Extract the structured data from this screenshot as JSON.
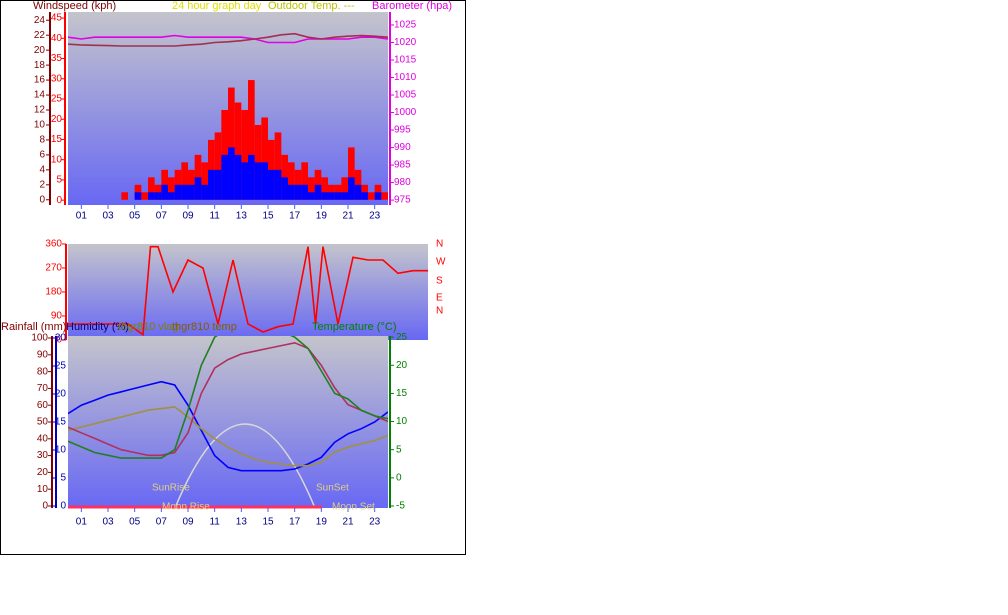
{
  "chart_data": [
    {
      "type": "bar",
      "labels": [
        {
          "text": "Windspeed (kph)",
          "color": "#800000"
        },
        {
          "text": "24 hour graph day",
          "color": "#e0e000"
        },
        {
          "text": "Outdoor Temp. ---",
          "color": "#c0c000"
        },
        {
          "text": "Barometer (hpa)",
          "color": "#e000e0"
        }
      ],
      "xlim": [
        0,
        24
      ],
      "xticks": [
        {
          "value": 1,
          "label": "01"
        },
        {
          "value": 3,
          "label": "03"
        },
        {
          "value": 5,
          "label": "05"
        },
        {
          "value": 7,
          "label": "07"
        },
        {
          "value": 9,
          "label": "09"
        },
        {
          "value": 11,
          "label": "11"
        },
        {
          "value": 13,
          "label": "13"
        },
        {
          "value": 15,
          "label": "15"
        },
        {
          "value": 17,
          "label": "17"
        },
        {
          "value": 19,
          "label": "19"
        },
        {
          "value": 21,
          "label": "21"
        },
        {
          "value": 23,
          "label": "23"
        }
      ],
      "ylim": [
        -0.7,
        25.1
      ],
      "yticks": [
        0,
        2,
        4,
        6,
        8,
        10,
        12,
        14,
        16,
        18,
        20,
        22,
        24
      ],
      "y3lim": [
        -1.2,
        46.5
      ],
      "y3ticks": [
        0,
        5,
        10,
        15,
        20,
        25,
        30,
        35,
        40,
        45
      ],
      "y2lim": [
        973.6,
        1028.7
      ],
      "y2ticks": [
        975,
        980,
        985,
        990,
        995,
        1000,
        1005,
        1010,
        1015,
        1020,
        1025
      ],
      "axis_colors": {
        "y": "#800000",
        "y3": "#ff0000",
        "y2": "#e000e0"
      },
      "series": [
        {
          "kind": "bar",
          "color": "#ff0000",
          "x": [
            0,
            0.5,
            1,
            1.5,
            2,
            2.5,
            3,
            3.5,
            4,
            4.5,
            5,
            5.5,
            6,
            6.5,
            7,
            7.5,
            8,
            8.5,
            9,
            9.5,
            10,
            10.5,
            11,
            11.5,
            12,
            12.5,
            13,
            13.5,
            14,
            14.5,
            15,
            15.5,
            16,
            16.5,
            17,
            17.5,
            18,
            18.5,
            19,
            19.5,
            20,
            20.5,
            21,
            21.5,
            22,
            22.5,
            23,
            23.5
          ],
          "values": [
            0,
            0,
            0,
            0,
            0,
            0,
            0,
            0,
            1,
            0,
            2,
            1,
            3,
            2,
            4,
            3,
            4,
            5,
            4,
            6,
            5,
            8,
            9,
            12,
            15,
            13,
            12,
            16,
            10,
            11,
            8,
            9,
            6,
            5,
            4,
            5,
            3,
            4,
            3,
            2,
            2,
            3,
            7,
            4,
            2,
            1,
            2,
            1
          ]
        },
        {
          "kind": "bar",
          "color": "#0000ff",
          "x": [
            0,
            0.5,
            1,
            1.5,
            2,
            2.5,
            3,
            3.5,
            4,
            4.5,
            5,
            5.5,
            6,
            6.5,
            7,
            7.5,
            8,
            8.5,
            9,
            9.5,
            10,
            10.5,
            11,
            11.5,
            12,
            12.5,
            13,
            13.5,
            14,
            14.5,
            15,
            15.5,
            16,
            16.5,
            17,
            17.5,
            18,
            18.5,
            19,
            19.5,
            20,
            20.5,
            21,
            21.5,
            22,
            22.5,
            23,
            23.5
          ],
          "values": [
            0,
            0,
            0,
            0,
            0,
            0,
            0,
            0,
            0,
            0,
            1,
            0,
            1,
            1,
            2,
            1,
            2,
            2,
            2,
            3,
            2,
            4,
            4,
            6,
            7,
            6,
            5,
            6,
            5,
            5,
            4,
            4,
            3,
            2,
            2,
            2,
            1,
            2,
            1,
            1,
            1,
            1,
            3,
            2,
            1,
            0,
            1,
            0
          ]
        },
        {
          "kind": "line",
          "axis": "y2",
          "color": "#e000e0",
          "x": [
            0,
            1,
            2,
            3,
            4,
            5,
            6,
            7,
            8,
            9,
            10,
            11,
            12,
            13,
            14,
            15,
            16,
            17,
            18,
            19,
            20,
            21,
            22,
            23,
            24
          ],
          "values": [
            1021.5,
            1021,
            1021.5,
            1021.5,
            1021.5,
            1021.5,
            1021.5,
            1021.5,
            1022,
            1021.5,
            1021.5,
            1021.5,
            1021.5,
            1021.5,
            1021,
            1020,
            1020,
            1020,
            1021,
            1021,
            1021,
            1021,
            1021.5,
            1021.5,
            1021
          ]
        },
        {
          "kind": "line",
          "axis": "y2",
          "color": "#a03050",
          "x": [
            0,
            1,
            2,
            3,
            4,
            5,
            6,
            7,
            8,
            9,
            10,
            11,
            12,
            13,
            14,
            15,
            16,
            17,
            18,
            19,
            20,
            21,
            22,
            23,
            24
          ],
          "values": [
            1019.5,
            1019.3,
            1019.2,
            1019.1,
            1019,
            1019,
            1019,
            1019,
            1019,
            1019.3,
            1019.5,
            1020,
            1020.2,
            1020.5,
            1021,
            1021.5,
            1022.2,
            1022.5,
            1021.5,
            1021,
            1021.5,
            1021.8,
            1022,
            1021.8,
            1021.5
          ]
        }
      ]
    },
    {
      "type": "line",
      "labels": [],
      "xlim": [
        0,
        24
      ],
      "xticks": [],
      "ylim": [
        0,
        360
      ],
      "yticks": [
        0,
        90,
        180,
        270,
        360
      ],
      "axis_colors": {
        "y": "#ff0000"
      },
      "compass": [
        "N",
        "W",
        "S",
        "E",
        "N"
      ],
      "compass_color": "#ff0000",
      "series": [
        {
          "kind": "line",
          "color": "#ff0000",
          "x": [
            0,
            1,
            2,
            3,
            4,
            5,
            5.5,
            6,
            7,
            8,
            9,
            10,
            11,
            12,
            13,
            14,
            15,
            16,
            16.5,
            17,
            18,
            19,
            20,
            21,
            22,
            23,
            24
          ],
          "values": [
            60,
            60,
            60,
            60,
            60,
            20,
            350,
            350,
            180,
            300,
            270,
            60,
            300,
            60,
            30,
            50,
            60,
            350,
            60,
            350,
            60,
            310,
            300,
            300,
            250,
            260,
            260
          ]
        }
      ]
    },
    {
      "type": "line",
      "labels": [
        {
          "text": "Rainfall (mm)",
          "color": "#800000"
        },
        {
          "text": "Humidity (%)",
          "color": "#000080"
        },
        {
          "text": "thgr810 vlag",
          "color": "#808000"
        },
        {
          "text": "thgr810 temp",
          "color": "#806000"
        },
        {
          "text": "Temperature (°C)",
          "color": "#008000"
        }
      ],
      "annotations": [
        "SunRise",
        "SunSet",
        "Moon Rise",
        "Moon Set"
      ],
      "xlim": [
        0,
        24
      ],
      "xticks": [
        {
          "value": 1,
          "label": "01"
        },
        {
          "value": 3,
          "label": "03"
        },
        {
          "value": 5,
          "label": "05"
        },
        {
          "value": 7,
          "label": "07"
        },
        {
          "value": 9,
          "label": "09"
        },
        {
          "value": 11,
          "label": "11"
        },
        {
          "value": 13,
          "label": "13"
        },
        {
          "value": 15,
          "label": "15"
        },
        {
          "value": 17,
          "label": "17"
        },
        {
          "value": 19,
          "label": "19"
        },
        {
          "value": 21,
          "label": "21"
        },
        {
          "value": 23,
          "label": "23"
        }
      ],
      "ylim": [
        -1.2,
        101.2
      ],
      "yticks": [
        0,
        10,
        20,
        30,
        40,
        50,
        60,
        70,
        80,
        90,
        100
      ],
      "y3lim": [
        -0.36,
        30.36
      ],
      "y3ticks": [
        0,
        5,
        10,
        15,
        20,
        25,
        30
      ],
      "y2lim": [
        -5.36,
        25.2
      ],
      "y2ticks": [
        -5,
        0,
        5,
        10,
        15,
        20,
        25
      ],
      "axis_colors": {
        "y": "#800000",
        "y3": "#0000c0",
        "y2": "#008000"
      },
      "series": [
        {
          "kind": "line",
          "color": "#0000ff",
          "x": [
            0,
            1,
            2,
            3,
            4,
            5,
            6,
            7,
            8,
            9,
            10,
            11,
            12,
            13,
            14,
            15,
            16,
            17,
            18,
            19,
            20,
            21,
            22,
            23,
            24
          ],
          "values": [
            55,
            60,
            63,
            66,
            68,
            70,
            72,
            74,
            72,
            60,
            45,
            30,
            23,
            21,
            21,
            21,
            21,
            22,
            25,
            29,
            38,
            43,
            46,
            50,
            56
          ]
        },
        {
          "kind": "line",
          "color": "#a09040",
          "x": [
            0,
            1,
            2,
            3,
            4,
            5,
            6,
            7,
            8,
            9,
            10,
            11,
            12,
            13,
            14,
            15,
            16,
            17,
            18,
            19,
            20,
            21,
            22,
            23,
            24
          ],
          "values": [
            45,
            47,
            49,
            51,
            53,
            55,
            57,
            58,
            59,
            53,
            46,
            40,
            35,
            31,
            28,
            26,
            25,
            24,
            24,
            26,
            32,
            35,
            37,
            39,
            42
          ]
        },
        {
          "kind": "line",
          "axis": "y2",
          "color": "#b03060",
          "x": [
            0,
            1,
            2,
            3,
            4,
            5,
            6,
            7,
            8,
            9,
            10,
            11,
            12,
            13,
            14,
            15,
            16,
            17,
            18,
            19,
            20,
            21,
            22,
            23,
            24
          ],
          "values": [
            9,
            8,
            7,
            6,
            5,
            4.5,
            4,
            4,
            4.5,
            8,
            15,
            19.5,
            21,
            22,
            22.5,
            23,
            23.5,
            24,
            23,
            20,
            16,
            13,
            12,
            11,
            10
          ]
        },
        {
          "kind": "line",
          "axis": "y2",
          "color": "#208020",
          "x": [
            0,
            1,
            2,
            3,
            4,
            5,
            6,
            7,
            8,
            9,
            10,
            11,
            12,
            13,
            14,
            15,
            16,
            17,
            18,
            19,
            20,
            21,
            22,
            23,
            24
          ],
          "values": [
            6.5,
            5.5,
            4.5,
            4,
            3.5,
            3.5,
            3.5,
            3.5,
            5,
            12,
            20,
            25,
            26.5,
            26.5,
            26,
            26.5,
            26,
            25,
            23,
            19,
            15,
            14,
            12,
            11,
            10.5
          ]
        }
      ]
    }
  ]
}
